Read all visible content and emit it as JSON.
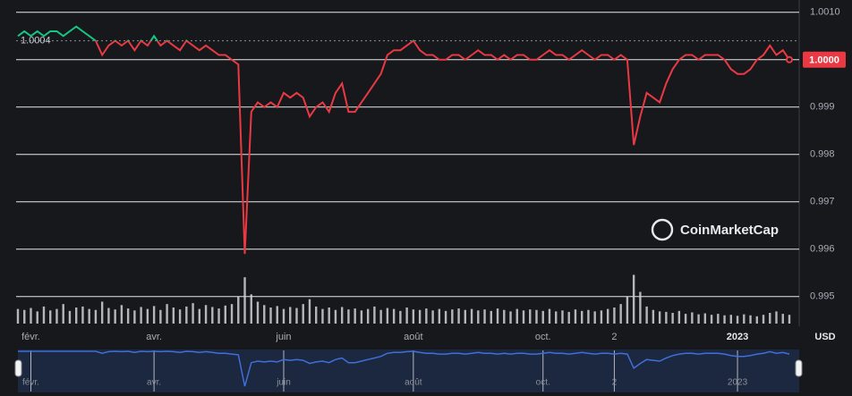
{
  "chart_data": {
    "type": "line",
    "categories": [
      null,
      null,
      "févr.",
      null,
      null,
      null,
      null,
      null,
      null,
      null,
      null,
      null,
      null,
      null,
      null,
      null,
      null,
      null,
      null,
      null,
      null,
      "avr.",
      null,
      null,
      null,
      null,
      null,
      null,
      null,
      null,
      null,
      null,
      null,
      null,
      null,
      null,
      null,
      null,
      null,
      null,
      null,
      "juin",
      null,
      null,
      null,
      null,
      null,
      null,
      null,
      null,
      null,
      null,
      null,
      null,
      null,
      null,
      null,
      null,
      null,
      null,
      null,
      "août",
      null,
      null,
      null,
      null,
      null,
      null,
      null,
      null,
      null,
      null,
      null,
      null,
      null,
      null,
      null,
      null,
      null,
      null,
      null,
      "oct.",
      null,
      null,
      null,
      null,
      null,
      null,
      null,
      null,
      null,
      null,
      "2",
      null,
      null,
      null,
      null,
      null,
      null,
      null,
      null,
      null,
      null,
      null,
      null,
      null,
      null,
      null,
      null,
      null,
      null,
      "2023",
      null,
      null,
      null,
      null,
      null,
      null,
      null,
      null
    ],
    "values": [
      1.0005,
      1.0006,
      1.0005,
      1.0006,
      1.0005,
      1.0006,
      1.0006,
      1.0005,
      1.0006,
      1.0007,
      1.0006,
      1.0005,
      1.0004,
      1.0001,
      1.0003,
      1.0004,
      1.0003,
      1.0004,
      1.0002,
      1.0004,
      1.0003,
      1.0005,
      1.0003,
      1.0004,
      1.0003,
      1.0002,
      1.0004,
      1.0003,
      1.0002,
      1.0003,
      1.0002,
      1.0001,
      1.0001,
      1.0,
      0.9999,
      0.9959,
      0.9989,
      0.9991,
      0.999,
      0.9991,
      0.999,
      0.9993,
      0.9992,
      0.9993,
      0.9992,
      0.9988,
      0.999,
      0.9991,
      0.9989,
      0.9993,
      0.9995,
      0.9989,
      0.9989,
      0.9991,
      0.9993,
      0.9995,
      0.9997,
      1.0001,
      1.0002,
      1.0002,
      1.0003,
      1.0004,
      1.0002,
      1.0001,
      1.0001,
      1.0,
      1.0,
      1.0001,
      1.0001,
      1.0,
      1.0001,
      1.0002,
      1.0001,
      1.0001,
      1.0,
      1.0001,
      1.0,
      1.0001,
      1.0001,
      1.0,
      1.0,
      1.0001,
      1.0002,
      1.0001,
      1.0001,
      1.0,
      1.0001,
      1.0002,
      1.0001,
      1.0,
      1.0001,
      1.0001,
      1.0,
      1.0001,
      1.0,
      0.9982,
      0.9988,
      0.9993,
      0.9992,
      0.9991,
      0.9995,
      0.9998,
      1.0,
      1.0001,
      1.0001,
      1.0,
      1.0001,
      1.0001,
      1.0001,
      1.0,
      0.9998,
      0.9997,
      0.9997,
      0.9998,
      1.0,
      1.0001,
      1.0003,
      1.0001,
      1.0002,
      1.0
    ],
    "volumes": [
      30,
      28,
      32,
      25,
      35,
      27,
      30,
      40,
      26,
      33,
      35,
      30,
      28,
      45,
      32,
      29,
      38,
      31,
      27,
      34,
      30,
      36,
      28,
      40,
      33,
      29,
      35,
      42,
      30,
      38,
      34,
      31,
      37,
      40,
      55,
      95,
      60,
      45,
      38,
      33,
      36,
      30,
      34,
      32,
      40,
      50,
      35,
      30,
      33,
      28,
      34,
      29,
      31,
      27,
      30,
      35,
      28,
      32,
      30,
      26,
      33,
      29,
      28,
      31,
      27,
      30,
      26,
      29,
      31,
      28,
      30,
      27,
      29,
      26,
      31,
      28,
      25,
      30,
      27,
      29,
      28,
      26,
      30,
      25,
      27,
      24,
      29,
      26,
      28,
      25,
      27,
      30,
      33,
      40,
      55,
      100,
      65,
      35,
      28,
      25,
      24,
      22,
      26,
      20,
      23,
      19,
      21,
      18,
      20,
      17,
      18,
      16,
      19,
      17,
      15,
      18,
      22,
      25,
      20,
      18
    ],
    "vlim": [
      0,
      110
    ],
    "ylim": [
      0.99443,
      1.00126
    ],
    "yticks": [
      {
        "value": 1.001,
        "label": "1.0010"
      },
      {
        "value": 1,
        "label": "1.0000"
      },
      0.999,
      0.998,
      0.997,
      0.996,
      0.995
    ],
    "reference_line": 1.0004,
    "last_value_label": "1.0000",
    "currency": "USD",
    "watermark": "CoinMarketCap",
    "up_color": "#16c784",
    "down_color": "#ea3943",
    "volume_color": "#cfd2d8",
    "navigator_color": "#3f6fd8",
    "grid": true
  }
}
